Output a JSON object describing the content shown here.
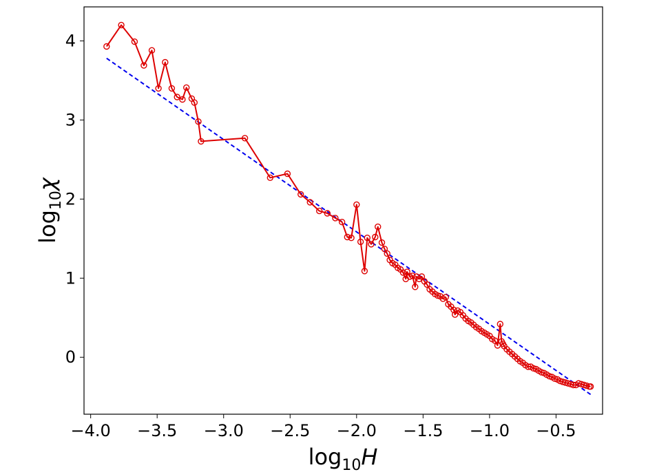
{
  "chart_data": {
    "type": "line",
    "xlabel": "log10H",
    "ylabel": "log10χ",
    "xlabel_parts": {
      "base": "log",
      "sub": "10",
      "var": "H"
    },
    "ylabel_parts": {
      "base": "log",
      "sub": "10",
      "var": "χ"
    },
    "xlim": [
      -4.05,
      -0.15
    ],
    "ylim": [
      -0.72,
      4.43
    ],
    "x_ticks": [
      -4.0,
      -3.5,
      -3.0,
      -2.5,
      -2.0,
      -1.5,
      -1.0,
      -0.5
    ],
    "x_tick_labels": [
      "−4.0",
      "−3.5",
      "−3.0",
      "−2.5",
      "−2.0",
      "−1.5",
      "−1.0",
      "−0.5"
    ],
    "y_ticks": [
      0,
      1,
      2,
      3,
      4
    ],
    "y_tick_labels": [
      "0",
      "1",
      "2",
      "3",
      "4"
    ],
    "grid": false,
    "legend": "none",
    "series": [
      {
        "style": "solid line with open circle markers",
        "color": "#dd0000",
        "x": [
          -3.88,
          -3.77,
          -3.67,
          -3.6,
          -3.54,
          -3.49,
          -3.44,
          -3.39,
          -3.35,
          -3.31,
          -3.28,
          -3.24,
          -3.22,
          -3.19,
          -3.17,
          -2.84,
          -2.65,
          -2.52,
          -2.42,
          -2.35,
          -2.28,
          -2.22,
          -2.16,
          -2.11,
          -2.07,
          -2.04,
          -2.0,
          -1.97,
          -1.94,
          -1.92,
          -1.89,
          -1.86,
          -1.84,
          -1.81,
          -1.79,
          -1.77,
          -1.75,
          -1.73,
          -1.71,
          -1.69,
          -1.67,
          -1.65,
          -1.63,
          -1.62,
          -1.6,
          -1.58,
          -1.56,
          -1.55,
          -1.53,
          -1.51,
          -1.49,
          -1.47,
          -1.45,
          -1.43,
          -1.41,
          -1.39,
          -1.37,
          -1.35,
          -1.33,
          -1.31,
          -1.29,
          -1.27,
          -1.26,
          -1.24,
          -1.22,
          -1.2,
          -1.18,
          -1.16,
          -1.14,
          -1.12,
          -1.1,
          -1.08,
          -1.06,
          -1.04,
          -1.02,
          -1.0,
          -0.98,
          -0.96,
          -0.94,
          -0.92,
          -0.91,
          -0.9,
          -0.89,
          -0.87,
          -0.85,
          -0.83,
          -0.81,
          -0.79,
          -0.77,
          -0.75,
          -0.73,
          -0.71,
          -0.69,
          -0.67,
          -0.65,
          -0.63,
          -0.61,
          -0.59,
          -0.57,
          -0.55,
          -0.53,
          -0.51,
          -0.49,
          -0.47,
          -0.45,
          -0.43,
          -0.41,
          -0.39,
          -0.37,
          -0.35,
          -0.33,
          -0.31,
          -0.29,
          -0.27,
          -0.25,
          -0.24
        ],
        "y": [
          3.93,
          4.2,
          3.99,
          3.69,
          3.88,
          3.4,
          3.73,
          3.4,
          3.29,
          3.26,
          3.41,
          3.27,
          3.22,
          2.98,
          2.73,
          2.77,
          2.27,
          2.32,
          2.06,
          1.96,
          1.85,
          1.82,
          1.76,
          1.71,
          1.52,
          1.51,
          1.93,
          1.46,
          1.09,
          1.51,
          1.43,
          1.52,
          1.65,
          1.45,
          1.37,
          1.31,
          1.23,
          1.19,
          1.17,
          1.13,
          1.11,
          1.07,
          0.99,
          1.08,
          1.02,
          1.03,
          0.89,
          1.02,
          0.99,
          1.02,
          0.96,
          0.92,
          0.86,
          0.83,
          0.8,
          0.78,
          0.77,
          0.74,
          0.76,
          0.67,
          0.64,
          0.6,
          0.54,
          0.59,
          0.57,
          0.53,
          0.49,
          0.46,
          0.44,
          0.41,
          0.38,
          0.36,
          0.33,
          0.31,
          0.29,
          0.27,
          0.23,
          0.21,
          0.15,
          0.42,
          0.2,
          0.17,
          0.14,
          0.1,
          0.07,
          0.04,
          0.01,
          -0.02,
          -0.05,
          -0.07,
          -0.1,
          -0.12,
          -0.12,
          -0.14,
          -0.15,
          -0.17,
          -0.19,
          -0.2,
          -0.22,
          -0.24,
          -0.25,
          -0.27,
          -0.28,
          -0.3,
          -0.31,
          -0.32,
          -0.33,
          -0.34,
          -0.35,
          -0.35,
          -0.33,
          -0.34,
          -0.35,
          -0.36,
          -0.37,
          -0.37
        ]
      },
      {
        "style": "dashed line (fit)",
        "color": "#0000ee",
        "x": [
          -3.88,
          -0.24
        ],
        "y": [
          3.78,
          -0.47
        ]
      }
    ]
  }
}
